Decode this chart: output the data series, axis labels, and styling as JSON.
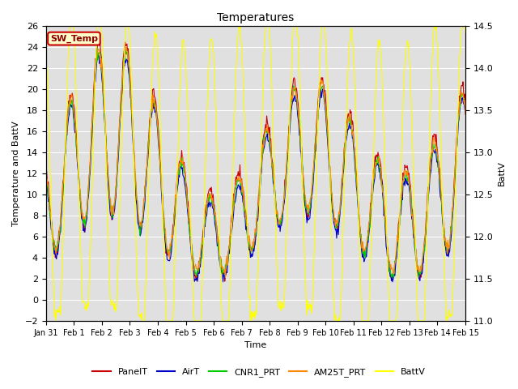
{
  "title": "Temperatures",
  "xlabel": "Time",
  "ylabel_left": "Temperature and BattV",
  "ylabel_right": "BattV",
  "ylim_left": [
    -2,
    26
  ],
  "ylim_right": [
    11.0,
    14.5
  ],
  "xtick_labels": [
    "Jan 31",
    "Feb 1",
    "Feb 2",
    "Feb 3",
    "Feb 4",
    "Feb 5",
    "Feb 6",
    "Feb 7",
    "Feb 8",
    "Feb 9",
    "Feb 10",
    "Feb 11",
    "Feb 12",
    "Feb 13",
    "Feb 14",
    "Feb 15"
  ],
  "yticks_left": [
    -2,
    0,
    2,
    4,
    6,
    8,
    10,
    12,
    14,
    16,
    18,
    20,
    22,
    24,
    26
  ],
  "yticks_right": [
    11.0,
    11.5,
    12.0,
    12.5,
    13.0,
    13.5,
    14.0,
    14.5
  ],
  "series": {
    "PanelT": {
      "color": "#cc0000",
      "lw": 0.8
    },
    "AirT": {
      "color": "#0000cc",
      "lw": 0.8
    },
    "CNR1_PRT": {
      "color": "#00cc00",
      "lw": 0.8
    },
    "AM25T_PRT": {
      "color": "#ff8800",
      "lw": 0.8
    },
    "BattV": {
      "color": "#ffff00",
      "lw": 0.8
    }
  },
  "bg_color": "#e0e0e0",
  "fig_bg": "#ffffff",
  "grid_color": "#ffffff",
  "grid_lw": 0.7,
  "sw_temp_label": "SW_Temp"
}
